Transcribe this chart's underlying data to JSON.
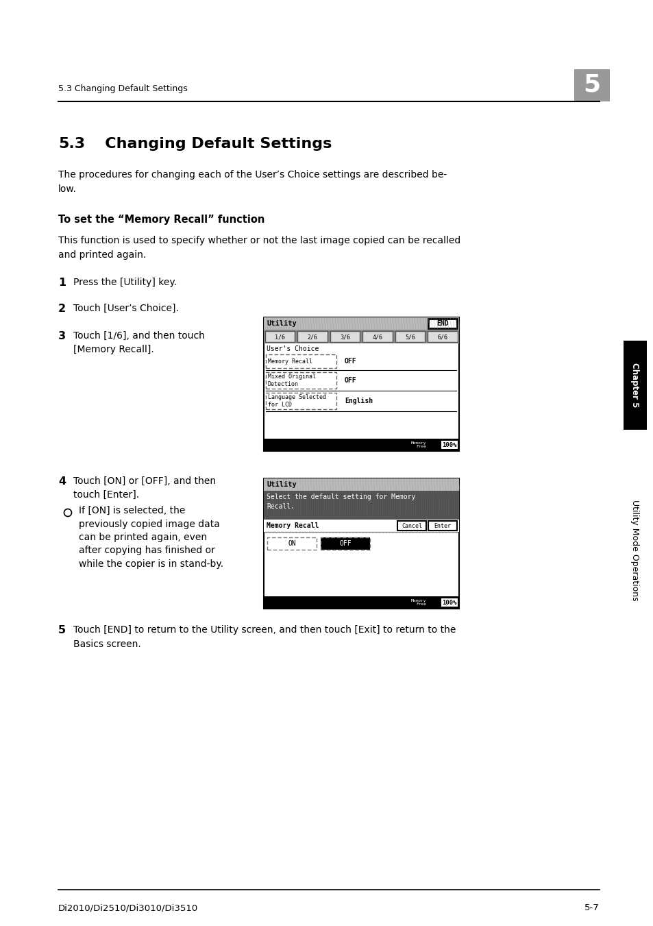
{
  "bg_color": "#ffffff",
  "header_text": "5.3 Changing Default Settings",
  "title_num": "5.3",
  "title_rest": "   Changing Default Settings",
  "intro_text": "The procedures for changing each of the User’s Choice settings are described be-\nlow.",
  "bold_heading": "To set the “Memory Recall” function",
  "function_desc": "This function is used to specify whether or not the last image copied can be recalled\nand printed again.",
  "step1": "Press the [Utility] key.",
  "step2": "Touch [User’s Choice].",
  "step3a": "Touch [1/6], and then touch",
  "step3b": "[Memory Recall].",
  "step4a": "Touch [ON] or [OFF], and then",
  "step4b": "touch [Enter].",
  "step4_bullet_lines": [
    "If [ON] is selected, the",
    "previously copied image data",
    "can be printed again, even",
    "after copying has finished or",
    "while the copier is in stand-by."
  ],
  "step5": "Touch [END] to return to the Utility screen, and then touch [Exit] to return to the\nBasics screen.",
  "footer_left": "Di2010/Di2510/Di3010/Di3510",
  "footer_right": "5-7",
  "chapter_tab_text": "Chapter 5",
  "side_tab_text": "Utility Mode Operations",
  "sc1_tabs": [
    "1/6",
    "2/6",
    "3/6",
    "4/6",
    "5/6",
    "6/6"
  ],
  "sc1_rows": [
    {
      "label": "Memory Recall",
      "value": "OFF"
    },
    {
      "label": "Mixed Original\nDetection",
      "value": "OFF"
    },
    {
      "label": "Language Selected\nfor LCD",
      "value": "English"
    }
  ],
  "sc2_msg": "Select the default setting for Memory\nRecall.",
  "sc2_label": "Memory Recall"
}
